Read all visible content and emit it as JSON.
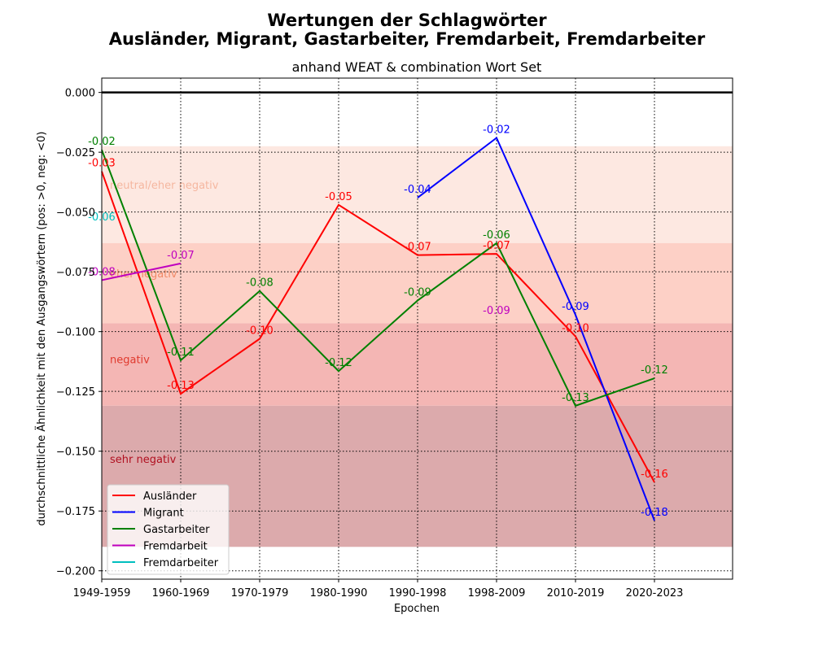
{
  "chart_data": {
    "type": "line",
    "title_line1": "Wertungen der Schlagwörter",
    "title_line2": "Ausländer, Migrant, Gastarbeiter, Fremdarbeit, Fremdarbeiter",
    "subtitle": "anhand WEAT & combination Wort Set",
    "xlabel": "Epochen",
    "ylabel": "durchschnittliche Ähnlichkeit mit den Ausgangswörtern (pos: >0, neg: <0)",
    "categories": [
      "1949-1959",
      "1960-1969",
      "1970-1979",
      "1980-1990",
      "1990-1998",
      "1998-2009",
      "2010-2019",
      "2020-2023"
    ],
    "ylim": [
      -0.2035,
      0.006
    ],
    "xlim": [
      0,
      8
    ],
    "yticks": [
      0.0,
      -0.025,
      -0.05,
      -0.075,
      -0.1,
      -0.125,
      -0.15,
      -0.175,
      -0.2
    ],
    "ytick_labels": [
      "0.000",
      "−0.025",
      "−0.050",
      "−0.075",
      "−0.100",
      "−0.125",
      "−0.150",
      "−0.175",
      "−0.200"
    ],
    "grid": true,
    "bands": [
      {
        "label": "neutral/eher negativ",
        "y_top": -0.0225,
        "y_bottom": -0.063,
        "color": "#fde8e1",
        "text_color": "#f5b7a0"
      },
      {
        "label": "eher negativ",
        "y_top": -0.063,
        "y_bottom": -0.0965,
        "color": "#fdd0c6",
        "text_color": "#f08a68"
      },
      {
        "label": "negativ",
        "y_top": -0.0965,
        "y_bottom": -0.131,
        "color": "#f4b6b4",
        "text_color": "#e03a2e"
      },
      {
        "label": "sehr negativ",
        "y_top": -0.131,
        "y_bottom": -0.19,
        "color": "#dcaaac",
        "text_color": "#b01020"
      }
    ],
    "series": [
      {
        "name": "Ausländer",
        "color": "#ff0000",
        "points": [
          [
            0,
            -0.033
          ],
          [
            1,
            -0.126
          ],
          [
            2,
            -0.103
          ],
          [
            3,
            -0.047
          ],
          [
            4,
            -0.068
          ],
          [
            5,
            -0.0675
          ],
          [
            6,
            -0.102
          ],
          [
            7,
            -0.163
          ]
        ],
        "labels": [
          "-0.03",
          "-0.13",
          "-0.10",
          "-0.05",
          "-0.07",
          "-0.07",
          "-0.10",
          "-0.16"
        ]
      },
      {
        "name": "Migrant",
        "color": "#0000ff",
        "points": [
          [
            4,
            -0.044
          ],
          [
            5,
            -0.019
          ],
          [
            6,
            -0.093
          ],
          [
            7,
            -0.179
          ]
        ],
        "labels": [
          "-0.04",
          "-0.02",
          "-0.09",
          "-0.18"
        ]
      },
      {
        "name": "Gastarbeiter",
        "color": "#008000",
        "points": [
          [
            0,
            -0.024
          ],
          [
            1,
            -0.112
          ],
          [
            2,
            -0.083
          ],
          [
            3,
            -0.1165
          ],
          [
            4,
            -0.087
          ],
          [
            5,
            -0.063
          ],
          [
            6,
            -0.131
          ],
          [
            7,
            -0.1195
          ]
        ],
        "labels": [
          "-0.02",
          "-0.11",
          "-0.08",
          "-0.12",
          "-0.09",
          "-0.06",
          "-0.13",
          "-0.12"
        ]
      },
      {
        "name": "Fremdarbeit",
        "color": "#bf00bf",
        "points": [
          [
            0,
            -0.0785
          ],
          [
            1,
            -0.0715
          ]
        ],
        "labels": [
          "-0.08",
          "-0.07"
        ],
        "extra_labels": [
          {
            "x": 5,
            "y": -0.091,
            "text": "-0.09"
          }
        ]
      },
      {
        "name": "Fremdarbeiter",
        "color": "#00bfbf",
        "points": [
          [
            0,
            -0.0555
          ]
        ],
        "labels": [
          "-0.06"
        ]
      }
    ],
    "legend_position": "lower-left"
  }
}
